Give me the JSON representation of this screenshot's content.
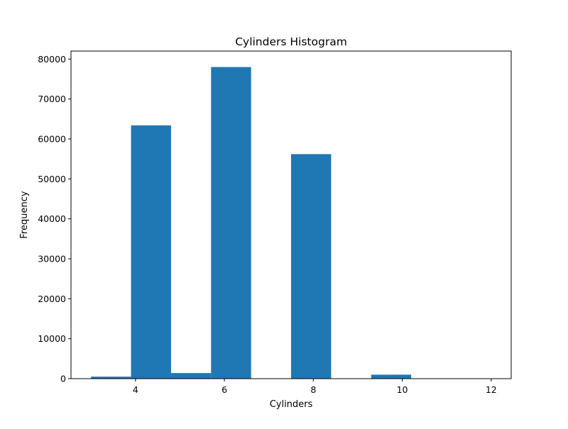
{
  "chart_data": {
    "type": "bar",
    "title": "Cylinders Histogram",
    "xlabel": "Cylinders",
    "ylabel": "Frequency",
    "xlim": [
      2.55,
      12.45
    ],
    "ylim": [
      0,
      82000
    ],
    "xticks": [
      4,
      6,
      8,
      10,
      12
    ],
    "yticks": [
      0,
      10000,
      20000,
      30000,
      40000,
      50000,
      60000,
      70000,
      80000
    ],
    "bar_color": "#1f77b4",
    "grid": false,
    "bins": [
      {
        "start": 3.0,
        "end": 3.9,
        "value": 500
      },
      {
        "start": 3.9,
        "end": 4.8,
        "value": 63400
      },
      {
        "start": 4.8,
        "end": 5.7,
        "value": 1400
      },
      {
        "start": 5.7,
        "end": 6.6,
        "value": 78000
      },
      {
        "start": 6.6,
        "end": 7.5,
        "value": 0
      },
      {
        "start": 7.5,
        "end": 8.4,
        "value": 56200
      },
      {
        "start": 8.4,
        "end": 9.3,
        "value": 0
      },
      {
        "start": 9.3,
        "end": 10.2,
        "value": 1000
      },
      {
        "start": 10.2,
        "end": 11.1,
        "value": 0
      },
      {
        "start": 11.1,
        "end": 12.0,
        "value": 50
      }
    ]
  }
}
